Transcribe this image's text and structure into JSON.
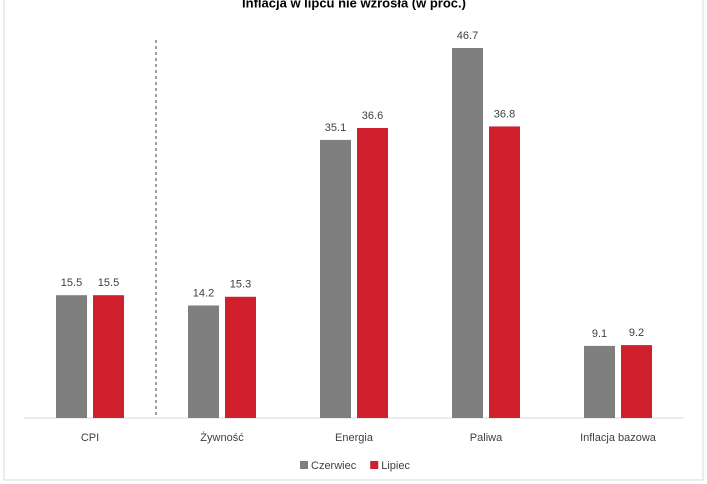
{
  "chart_data": {
    "type": "bar",
    "title": "Inflacja w lipcu nie wzrosła (w proc.)",
    "categories": [
      "CPI",
      "Żywność",
      "Energia",
      "Paliwa",
      "Inflacja bazowa"
    ],
    "series": [
      {
        "name": "Czerwiec",
        "color": "#7f7f7f",
        "values": [
          15.5,
          14.2,
          35.1,
          46.7,
          9.1
        ]
      },
      {
        "name": "Lipiec",
        "color": "#d0202e",
        "values": [
          15.5,
          15.3,
          36.6,
          36.8,
          9.2
        ]
      }
    ]
  }
}
